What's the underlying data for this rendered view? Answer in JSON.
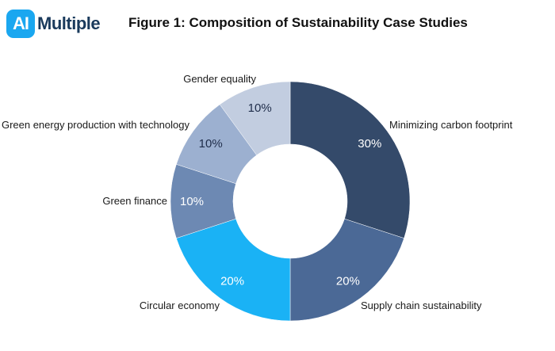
{
  "brand": {
    "badge": "AI",
    "word": "Multiple",
    "accent": "#1aa7f0"
  },
  "chart_data": {
    "type": "pie",
    "donut": true,
    "title": "Figure 1: Composition of Sustainability Case Studies",
    "unit": "%",
    "slices": [
      {
        "label": "Minimizing carbon footprint",
        "value": 30,
        "color": "#344a6a",
        "value_label": "30%",
        "value_color": "#ffffff"
      },
      {
        "label": "Supply chain sustainability",
        "value": 20,
        "color": "#4b6996",
        "value_label": "20%",
        "value_color": "#ffffff"
      },
      {
        "label": "Circular economy",
        "value": 20,
        "color": "#1ab2f5",
        "value_label": "20%",
        "value_color": "#ffffff"
      },
      {
        "label": "Green finance",
        "value": 10,
        "color": "#6d89b3",
        "value_label": "10%",
        "value_color": "#ffffff"
      },
      {
        "label": "Green energy production with technology",
        "value": 10,
        "color": "#9cb0d0",
        "value_label": "10%",
        "value_color": "#1f2d4a"
      },
      {
        "label": "Gender equality",
        "value": 10,
        "color": "#c2cde0",
        "value_label": "10%",
        "value_color": "#1f2d4a"
      }
    ]
  }
}
